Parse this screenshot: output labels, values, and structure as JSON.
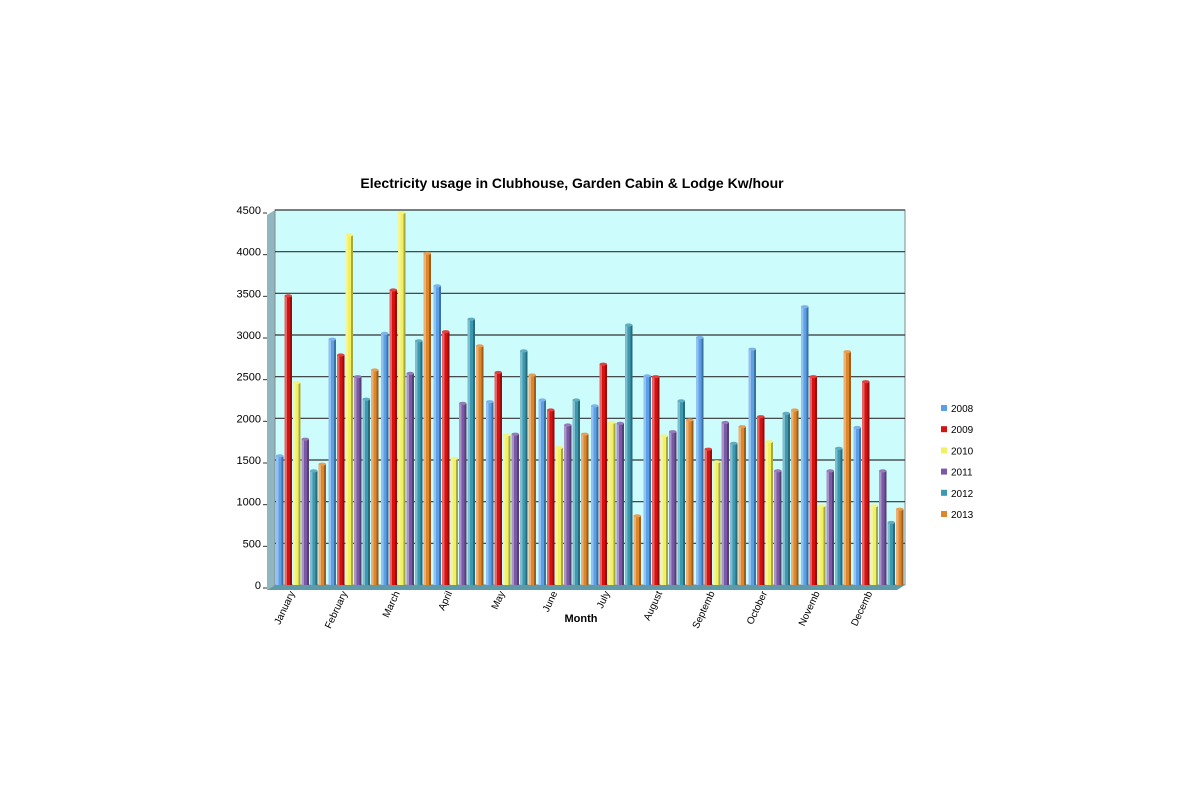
{
  "chart_data": {
    "type": "bar",
    "title": "Electricity usage in Clubhouse, Garden Cabin & Lodge Kw/hour",
    "xlabel": "Month",
    "ylabel": "",
    "ylim": [
      0,
      4500
    ],
    "yticks": [
      0,
      500,
      1000,
      1500,
      2000,
      2500,
      3000,
      3500,
      4000,
      4500
    ],
    "grid": true,
    "legend_position": "right",
    "categories": [
      "January",
      "February",
      "March",
      "April",
      "May",
      "June",
      "July",
      "August",
      "Septemb",
      "October",
      "Novemb",
      "Decemb"
    ],
    "series": [
      {
        "name": "2008",
        "color": "#5aa0e8",
        "values": [
          1550,
          2950,
          3020,
          3590,
          2200,
          2220,
          2150,
          2510,
          2970,
          2830,
          3340,
          1890
        ]
      },
      {
        "name": "2009",
        "color": "#d81010",
        "values": [
          3470,
          2760,
          3540,
          3040,
          2550,
          2100,
          2650,
          2500,
          1630,
          2020,
          2500,
          2440
        ]
      },
      {
        "name": "2010",
        "color": "#f0f060",
        "values": [
          2430,
          4200,
          4470,
          1520,
          1800,
          1650,
          1950,
          1790,
          1480,
          1720,
          950,
          950
        ]
      },
      {
        "name": "2011",
        "color": "#7a5aa6",
        "values": [
          1750,
          2500,
          2540,
          2180,
          1810,
          1920,
          1940,
          1840,
          1950,
          1370,
          1370,
          1370
        ]
      },
      {
        "name": "2012",
        "color": "#3a98b0",
        "values": [
          1370,
          2230,
          2930,
          3190,
          2810,
          2220,
          3120,
          2210,
          1700,
          2060,
          1640,
          750
        ]
      },
      {
        "name": "2013",
        "color": "#e0862a",
        "values": [
          1450,
          2580,
          3980,
          2870,
          2520,
          1810,
          830,
          1980,
          1900,
          2100,
          2800,
          910
        ]
      }
    ]
  }
}
